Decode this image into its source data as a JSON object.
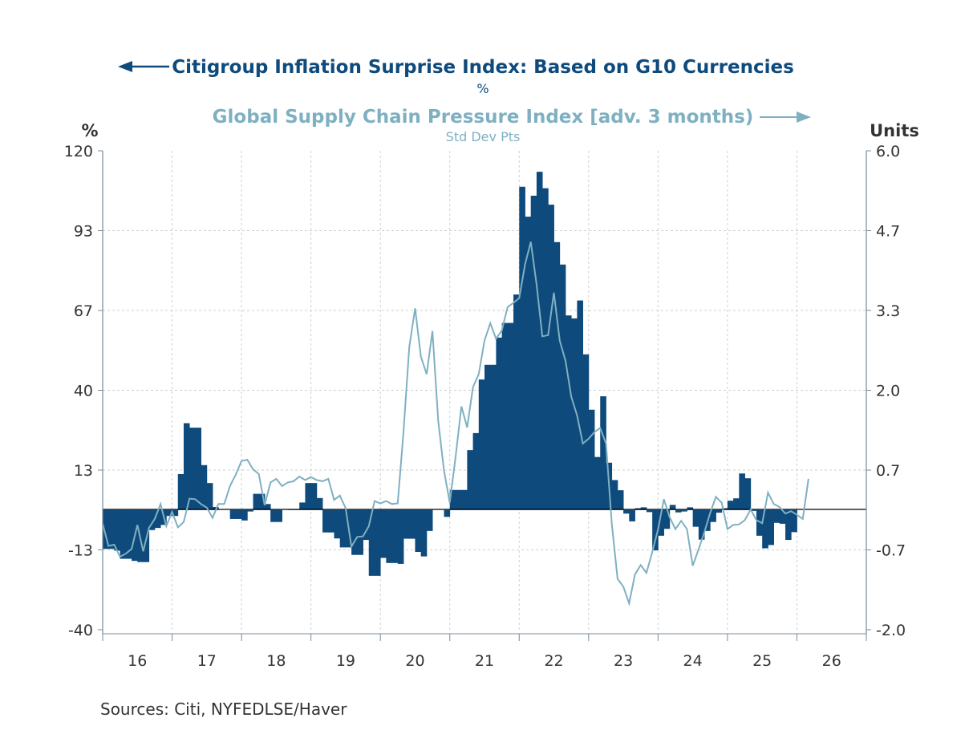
{
  "chart_data": {
    "type": "bar+line",
    "title_left_series": "Citigroup Inflation Surprise Index: Based on G10 Currencies",
    "left_units_sub": "%",
    "title_right_series": "Global Supply Chain Pressure Index [adv. 3 months)",
    "right_units_sub": "Std Dev Pts",
    "ylabel_left": "%",
    "ylabel_right": "Units",
    "ylim_left": [
      -40,
      120
    ],
    "ylim_right": [
      -2.0,
      6.0
    ],
    "left_ticks": [
      "120",
      "93",
      "67",
      "40",
      "13",
      "-13",
      "-40"
    ],
    "right_ticks": [
      "6.0",
      "4.7",
      "3.3",
      "2.0",
      "0.7",
      "-0.7",
      "-2.0"
    ],
    "x_tick_labels": [
      "16",
      "17",
      "18",
      "19",
      "20",
      "21",
      "22",
      "23",
      "24",
      "25",
      "26"
    ],
    "x_start": "2016-01",
    "x_end": "2026-12",
    "grid": true,
    "colors": {
      "bars": "#0e4a7c",
      "line": "#7fb0c2",
      "zero": "#000000"
    },
    "series": [
      {
        "name": "Citigroup Inflation Surprise Index: Based on G10 Currencies",
        "type": "bar",
        "axis": "left",
        "frequency": "monthly",
        "start": "2016-01",
        "values": [
          -13,
          -13,
          -13.6,
          -16.3,
          -16.3,
          -17,
          -17.4,
          -17.4,
          -6.7,
          -6,
          -5,
          -2,
          -2,
          12,
          29,
          27.5,
          27.5,
          15,
          9,
          1,
          0,
          0,
          -3,
          -3,
          -3.5,
          -0.5,
          5.4,
          5.4,
          2,
          -4,
          -4,
          0,
          0.3,
          0.3,
          2.5,
          9,
          9,
          4,
          -7.5,
          -7.5,
          -9.5,
          -12.5,
          -12.5,
          -15,
          -15,
          -10,
          -22,
          -22,
          -16,
          -17.7,
          -17.7,
          -18,
          -9.6,
          -9.6,
          -14,
          -15.5,
          -7,
          0,
          0,
          -2.3,
          6.7,
          6.7,
          6.7,
          20,
          25.7,
          43.6,
          48.5,
          48.5,
          57.6,
          62.5,
          62.5,
          72,
          108,
          98,
          105,
          113,
          107.5,
          102,
          89.5,
          82,
          65,
          64,
          70,
          52,
          33.5,
          17.7,
          38,
          15.8,
          10,
          6.6,
          -1.2,
          -3.8,
          0.6,
          0.9,
          -0.7,
          -13.5,
          -8.6,
          -6.3,
          1.7,
          -0.8,
          -0.5,
          0.9,
          -5.6,
          -9.9,
          -7,
          -4,
          -0.9,
          0.6,
          3.1,
          3.9,
          12.2,
          10.6,
          -0.3,
          -8.6,
          -12.8,
          -11.7,
          -4.3,
          -4.6,
          -10,
          -7.4
        ]
      },
      {
        "name": "Global Supply Chain Pressure Index [adv. 3 months)",
        "type": "line",
        "axis": "right",
        "frequency": "monthly",
        "start": "2016-01",
        "values": [
          -0.23,
          -0.6,
          -0.58,
          -0.78,
          -0.73,
          -0.65,
          -0.25,
          -0.69,
          -0.3,
          -0.15,
          0.1,
          -0.27,
          -0.03,
          -0.29,
          -0.2,
          0.19,
          0.18,
          0.1,
          0.04,
          -0.13,
          0.1,
          0.1,
          0.4,
          0.59,
          0.82,
          0.84,
          0.68,
          0.6,
          0.08,
          0.46,
          0.52,
          0.4,
          0.46,
          0.48,
          0.56,
          0.5,
          0.55,
          0.5,
          0.48,
          0.52,
          0.17,
          0.24,
          0.03,
          -0.61,
          -0.45,
          -0.44,
          -0.27,
          0.15,
          0.11,
          0.15,
          0.1,
          0.11,
          1.3,
          2.72,
          3.37,
          2.56,
          2.27,
          2.99,
          1.49,
          0.66,
          0.12,
          0.88,
          1.73,
          1.38,
          2.05,
          2.27,
          2.83,
          3.12,
          2.86,
          3.0,
          3.39,
          3.46,
          3.54,
          4.1,
          4.48,
          3.77,
          2.9,
          2.92,
          3.63,
          2.83,
          2.49,
          1.89,
          1.58,
          1.11,
          1.19,
          1.3,
          1.37,
          1.11,
          -0.23,
          -1.15,
          -1.28,
          -1.56,
          -1.08,
          -0.92,
          -1.05,
          -0.7,
          -0.32,
          0.18,
          -0.12,
          -0.32,
          -0.18,
          -0.32,
          -0.93,
          -0.66,
          -0.37,
          -0.05,
          0.22,
          0.12,
          -0.32,
          -0.25,
          -0.24,
          -0.17,
          0.01,
          -0.17,
          -0.22,
          0.29,
          0.1,
          0.05,
          -0.06,
          -0.02,
          -0.08,
          -0.15,
          0.52
        ]
      }
    ]
  },
  "footer": {
    "sources": "Sources:  Citi, NYFEDLSE/Haver"
  }
}
